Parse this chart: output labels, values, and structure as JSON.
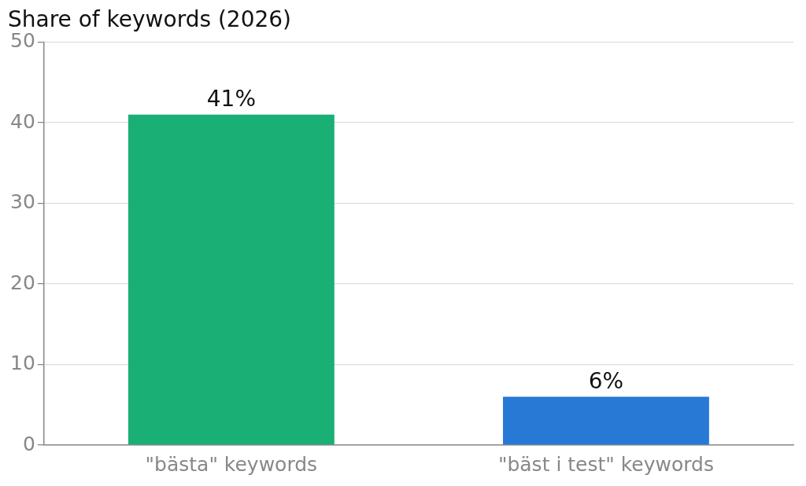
{
  "chart_data": {
    "type": "bar",
    "title": "Share of keywords (2026)",
    "categories": [
      "\"bästa\" keywords",
      "\"bäst i test\" keywords"
    ],
    "values": [
      41,
      6
    ],
    "colors": [
      "#1aaf75",
      "#2878d6"
    ],
    "value_labels": [
      "41%",
      "6%"
    ],
    "ylim": [
      0,
      50
    ],
    "yticks": [
      0,
      10,
      20,
      30,
      40,
      50
    ],
    "grid": "y",
    "legend": false
  }
}
